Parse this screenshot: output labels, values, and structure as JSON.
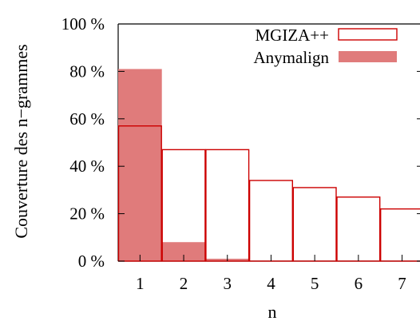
{
  "chart_data": {
    "type": "bar",
    "title": "",
    "xlabel": "n",
    "ylabel": "Couverture des n−grammes",
    "categories": [
      "1",
      "2",
      "3",
      "4",
      "5",
      "6",
      "7"
    ],
    "ylim": [
      0,
      100
    ],
    "yticks": [
      0,
      20,
      40,
      60,
      80,
      100
    ],
    "ytick_labels": [
      "0 %",
      "20 %",
      "40 %",
      "60 %",
      "80 %",
      "100 %"
    ],
    "grid": false,
    "legend_position": "top-right",
    "series": [
      {
        "name": "MGIZA++",
        "values": [
          57,
          47,
          47,
          34,
          31,
          27,
          22
        ],
        "style": "outline",
        "color": "#cc0000"
      },
      {
        "name": "Anymalign",
        "values": [
          81,
          8,
          1,
          0,
          0,
          0,
          0
        ],
        "style": "filled",
        "color": "#e07b7b"
      }
    ]
  }
}
